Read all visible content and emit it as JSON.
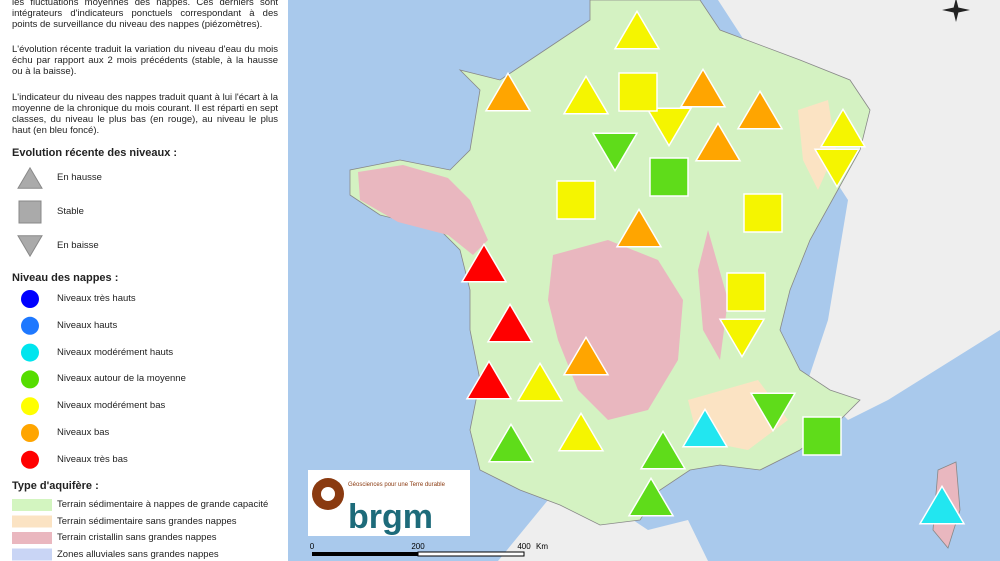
{
  "intro": {
    "paragraphs": [
      "les fluctuations moyennes des nappes. Ces derniers sont intégrateurs d'indicateurs ponctuels correspondant à des points de surveillance du niveau des nappes (piézomètres).",
      "L'évolution récente traduit la variation du niveau d'eau du mois échu par rapport aux 2 mois précédents (stable, à la hausse ou à la baisse).",
      "L'indicateur du niveau des nappes traduit quant à lui l'écart à la moyenne de la chronique du mois courant. Il est réparti en sept classes, du niveau le plus bas (en rouge), au niveau le plus haut (en bleu foncé)."
    ]
  },
  "legend": {
    "evolution": {
      "title": "Evolution récente des niveaux :",
      "items": [
        "En hausse",
        "Stable",
        "En baisse"
      ]
    },
    "niveau": {
      "title": "Niveau des nappes :",
      "items": [
        "Niveaux très hauts",
        "Niveaux hauts",
        "Niveaux modérément hauts",
        "Niveaux autour de la moyenne",
        "Niveaux modérément bas",
        "Niveaux bas",
        "Niveaux très bas"
      ]
    },
    "aquifere": {
      "title": "Type d'aquifère :",
      "items": [
        "Terrain sédimentaire à nappes de grande capacité",
        "Terrain sédimentaire sans grandes nappes",
        "Terrain cristallin sans grandes nappes",
        "Zones alluviales sans grandes nappes"
      ]
    }
  },
  "scale": {
    "ticks": [
      0,
      200,
      400
    ],
    "unit": "Km"
  },
  "logo": {
    "tagline": "Géosciences pour une Terre durable",
    "name": "brgm"
  }
}
